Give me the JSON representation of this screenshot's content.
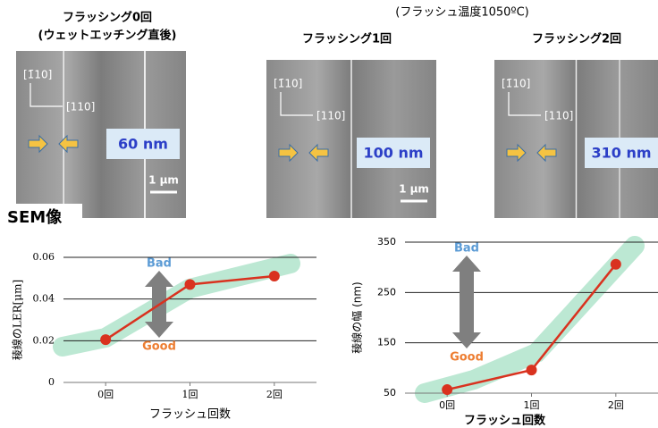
{
  "header": "(フラッシュ温度1050ºC)",
  "sem_label": "SEM像",
  "images": [
    {
      "title": "フラッシング0回",
      "subtitle": "(ウェットエッチング直後)",
      "width": "60 nm",
      "axis_a": "[1̄10]",
      "axis_b": "[110]",
      "scale": "1 μm"
    },
    {
      "title": "フラッシング1回",
      "width": "100 nm",
      "axis_a": "[1̄10]",
      "axis_b": "[110]",
      "scale": "1 μm"
    },
    {
      "title": "フラッシング2回",
      "width": "310 nm",
      "axis_a": "[1̄10]",
      "axis_b": "[110]"
    }
  ],
  "chart_data": [
    {
      "type": "line",
      "y_label": "稜線のLER[μm]",
      "x_label": "フラッシュ回数",
      "categories": [
        "0回",
        "1回",
        "2回"
      ],
      "series": [
        {
          "color": "#d9321f",
          "values": [
            0.0205,
            0.047,
            0.051
          ]
        }
      ],
      "ylim": [
        0,
        0.06
      ],
      "yticks": [
        0,
        0.02,
        0.04,
        0.06
      ],
      "grid": true,
      "annotations": [
        "Bad",
        "Good"
      ]
    },
    {
      "type": "line",
      "y_label": "稜線の幅 (nm)",
      "x_label": "フラッシュ回数",
      "categories": [
        "0回",
        "1回",
        "2回"
      ],
      "series": [
        {
          "color": "#d9321f",
          "values": [
            57,
            96,
            306
          ]
        }
      ],
      "ylim": [
        50,
        350
      ],
      "yticks": [
        50,
        150,
        250,
        350
      ],
      "grid": true,
      "annotations": [
        "Bad",
        "Good"
      ]
    }
  ]
}
